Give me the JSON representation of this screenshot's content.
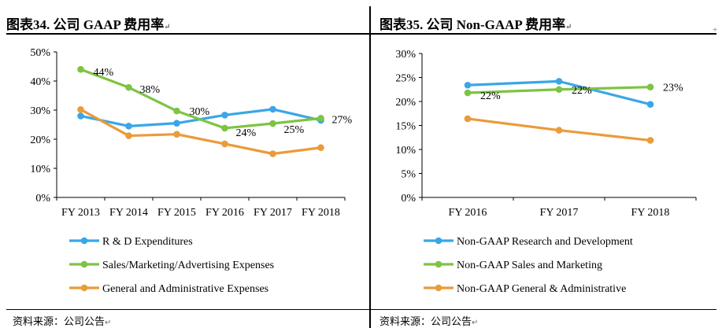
{
  "left": {
    "title": "图表34. 公司 GAAP 费用率",
    "source": "资料来源：公司公告"
  },
  "right": {
    "title": "图表35. 公司 Non-GAAP 费用率",
    "source": "资料来源：公司公告"
  },
  "para_mark": "↵",
  "corner_mark": "+",
  "colors": {
    "blue": "#3aa6e8",
    "green": "#7dc443",
    "orange": "#ea9b3a"
  },
  "chart_data": [
    {
      "type": "line",
      "categories": [
        "FY 2013",
        "FY 2014",
        "FY 2015",
        "FY 2016",
        "FY 2017",
        "FY 2018"
      ],
      "ylim": [
        0,
        50
      ],
      "yticks": [
        0,
        10,
        20,
        30,
        40,
        50
      ],
      "ytick_labels": [
        "0%",
        "10%",
        "20%",
        "30%",
        "40%",
        "50%"
      ],
      "grid": false,
      "legend_position": "bottom",
      "series": [
        {
          "name": "R & D Expenditures",
          "color": "#3aa6e8",
          "values": [
            28,
            24.5,
            25.5,
            28.3,
            30.3,
            26.5
          ],
          "labels": []
        },
        {
          "name": "Sales/Marketing/Advertising Expenses",
          "color": "#7dc443",
          "values": [
            44,
            37.8,
            29.7,
            23.8,
            25.4,
            27.2
          ],
          "labels": [
            {
              "i": 0,
              "text": "44%",
              "dx": 16,
              "dy": 8
            },
            {
              "i": 1,
              "text": "38%",
              "dx": 14,
              "dy": 7
            },
            {
              "i": 2,
              "text": "30%",
              "dx": 16,
              "dy": 5
            },
            {
              "i": 3,
              "text": "24%",
              "dx": 14,
              "dy": 10
            },
            {
              "i": 4,
              "text": "25%",
              "dx": 14,
              "dy": 12
            },
            {
              "i": 5,
              "text": "27%",
              "dx": 14,
              "dy": 6
            }
          ]
        },
        {
          "name": "General and Administrative Expenses",
          "color": "#ea9b3a",
          "values": [
            30.2,
            21.2,
            21.7,
            18.4,
            15,
            17.1
          ],
          "labels": []
        }
      ]
    },
    {
      "type": "line",
      "categories": [
        "FY 2016",
        "FY 2017",
        "FY 2018"
      ],
      "ylim": [
        0,
        30
      ],
      "yticks": [
        0,
        5,
        10,
        15,
        20,
        25,
        30
      ],
      "ytick_labels": [
        "0%",
        "5%",
        "10%",
        "15%",
        "20%",
        "25%",
        "30%"
      ],
      "grid": false,
      "legend_position": "bottom",
      "series": [
        {
          "name": "Non-GAAP Research and Development",
          "color": "#3aa6e8",
          "values": [
            23.4,
            24.2,
            19.4
          ],
          "labels": []
        },
        {
          "name": "Non-GAAP Sales and Marketing",
          "color": "#7dc443",
          "values": [
            21.8,
            22.5,
            23
          ],
          "labels": [
            {
              "i": 0,
              "text": "22%",
              "dx": 16,
              "dy": 8
            },
            {
              "i": 1,
              "text": "22%",
              "dx": 16,
              "dy": 5
            },
            {
              "i": 2,
              "text": "23%",
              "dx": 16,
              "dy": 5
            }
          ]
        },
        {
          "name": "Non-GAAP General & Administrative",
          "color": "#ea9b3a",
          "values": [
            16.4,
            14,
            11.9
          ],
          "labels": []
        }
      ]
    }
  ]
}
